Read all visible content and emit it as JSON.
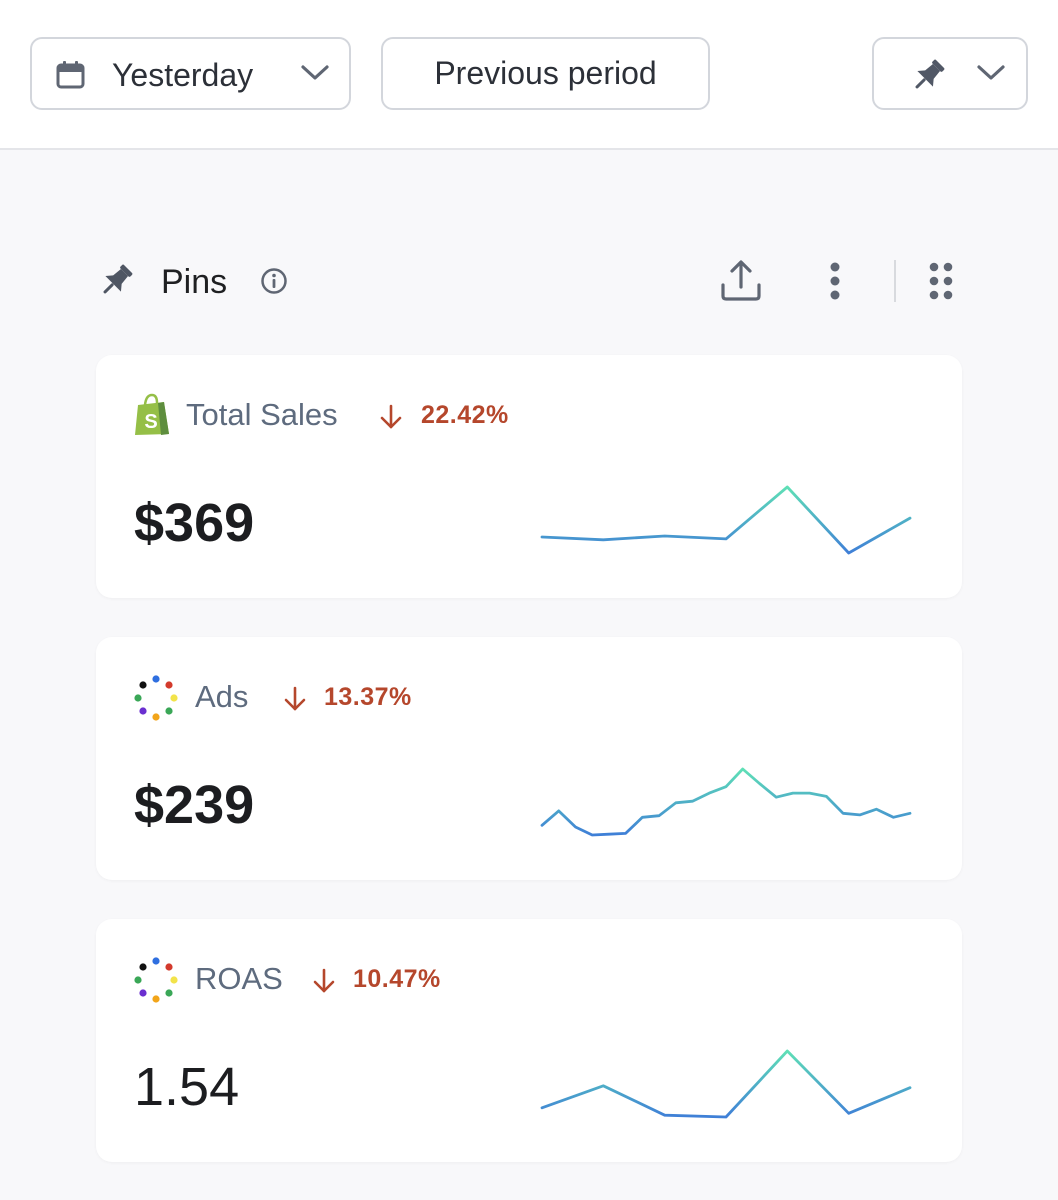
{
  "toolbar": {
    "date_range_label": "Yesterday",
    "compare_label": "Previous period"
  },
  "section": {
    "title": "Pins"
  },
  "cards": [
    {
      "name": "Total Sales",
      "source_icon": "shopify-bag-icon",
      "delta": "22.42%",
      "delta_direction": "down",
      "value": "$369",
      "sparkline": [
        35,
        32,
        36,
        33,
        88,
        18,
        55
      ]
    },
    {
      "name": "Ads",
      "source_icon": "multi-platform-dots-icon",
      "delta": "13.37%",
      "delta_direction": "down",
      "value": "$239",
      "sparkline": [
        30,
        48,
        28,
        18,
        19,
        20,
        40,
        42,
        58,
        60,
        70,
        78,
        100,
        82,
        65,
        70,
        70,
        66,
        45,
        43,
        50,
        40,
        45
      ]
    },
    {
      "name": "ROAS",
      "source_icon": "multi-platform-dots-icon",
      "delta": "10.47%",
      "delta_direction": "down",
      "value": "1.54",
      "sparkline": [
        38,
        62,
        30,
        28,
        100,
        32,
        60
      ]
    }
  ],
  "colors": {
    "delta_negative": "#b5472c",
    "spark_low": "#3f7fd7",
    "spark_high": "#5fe0b6",
    "shopify_green": "#95bf47"
  }
}
